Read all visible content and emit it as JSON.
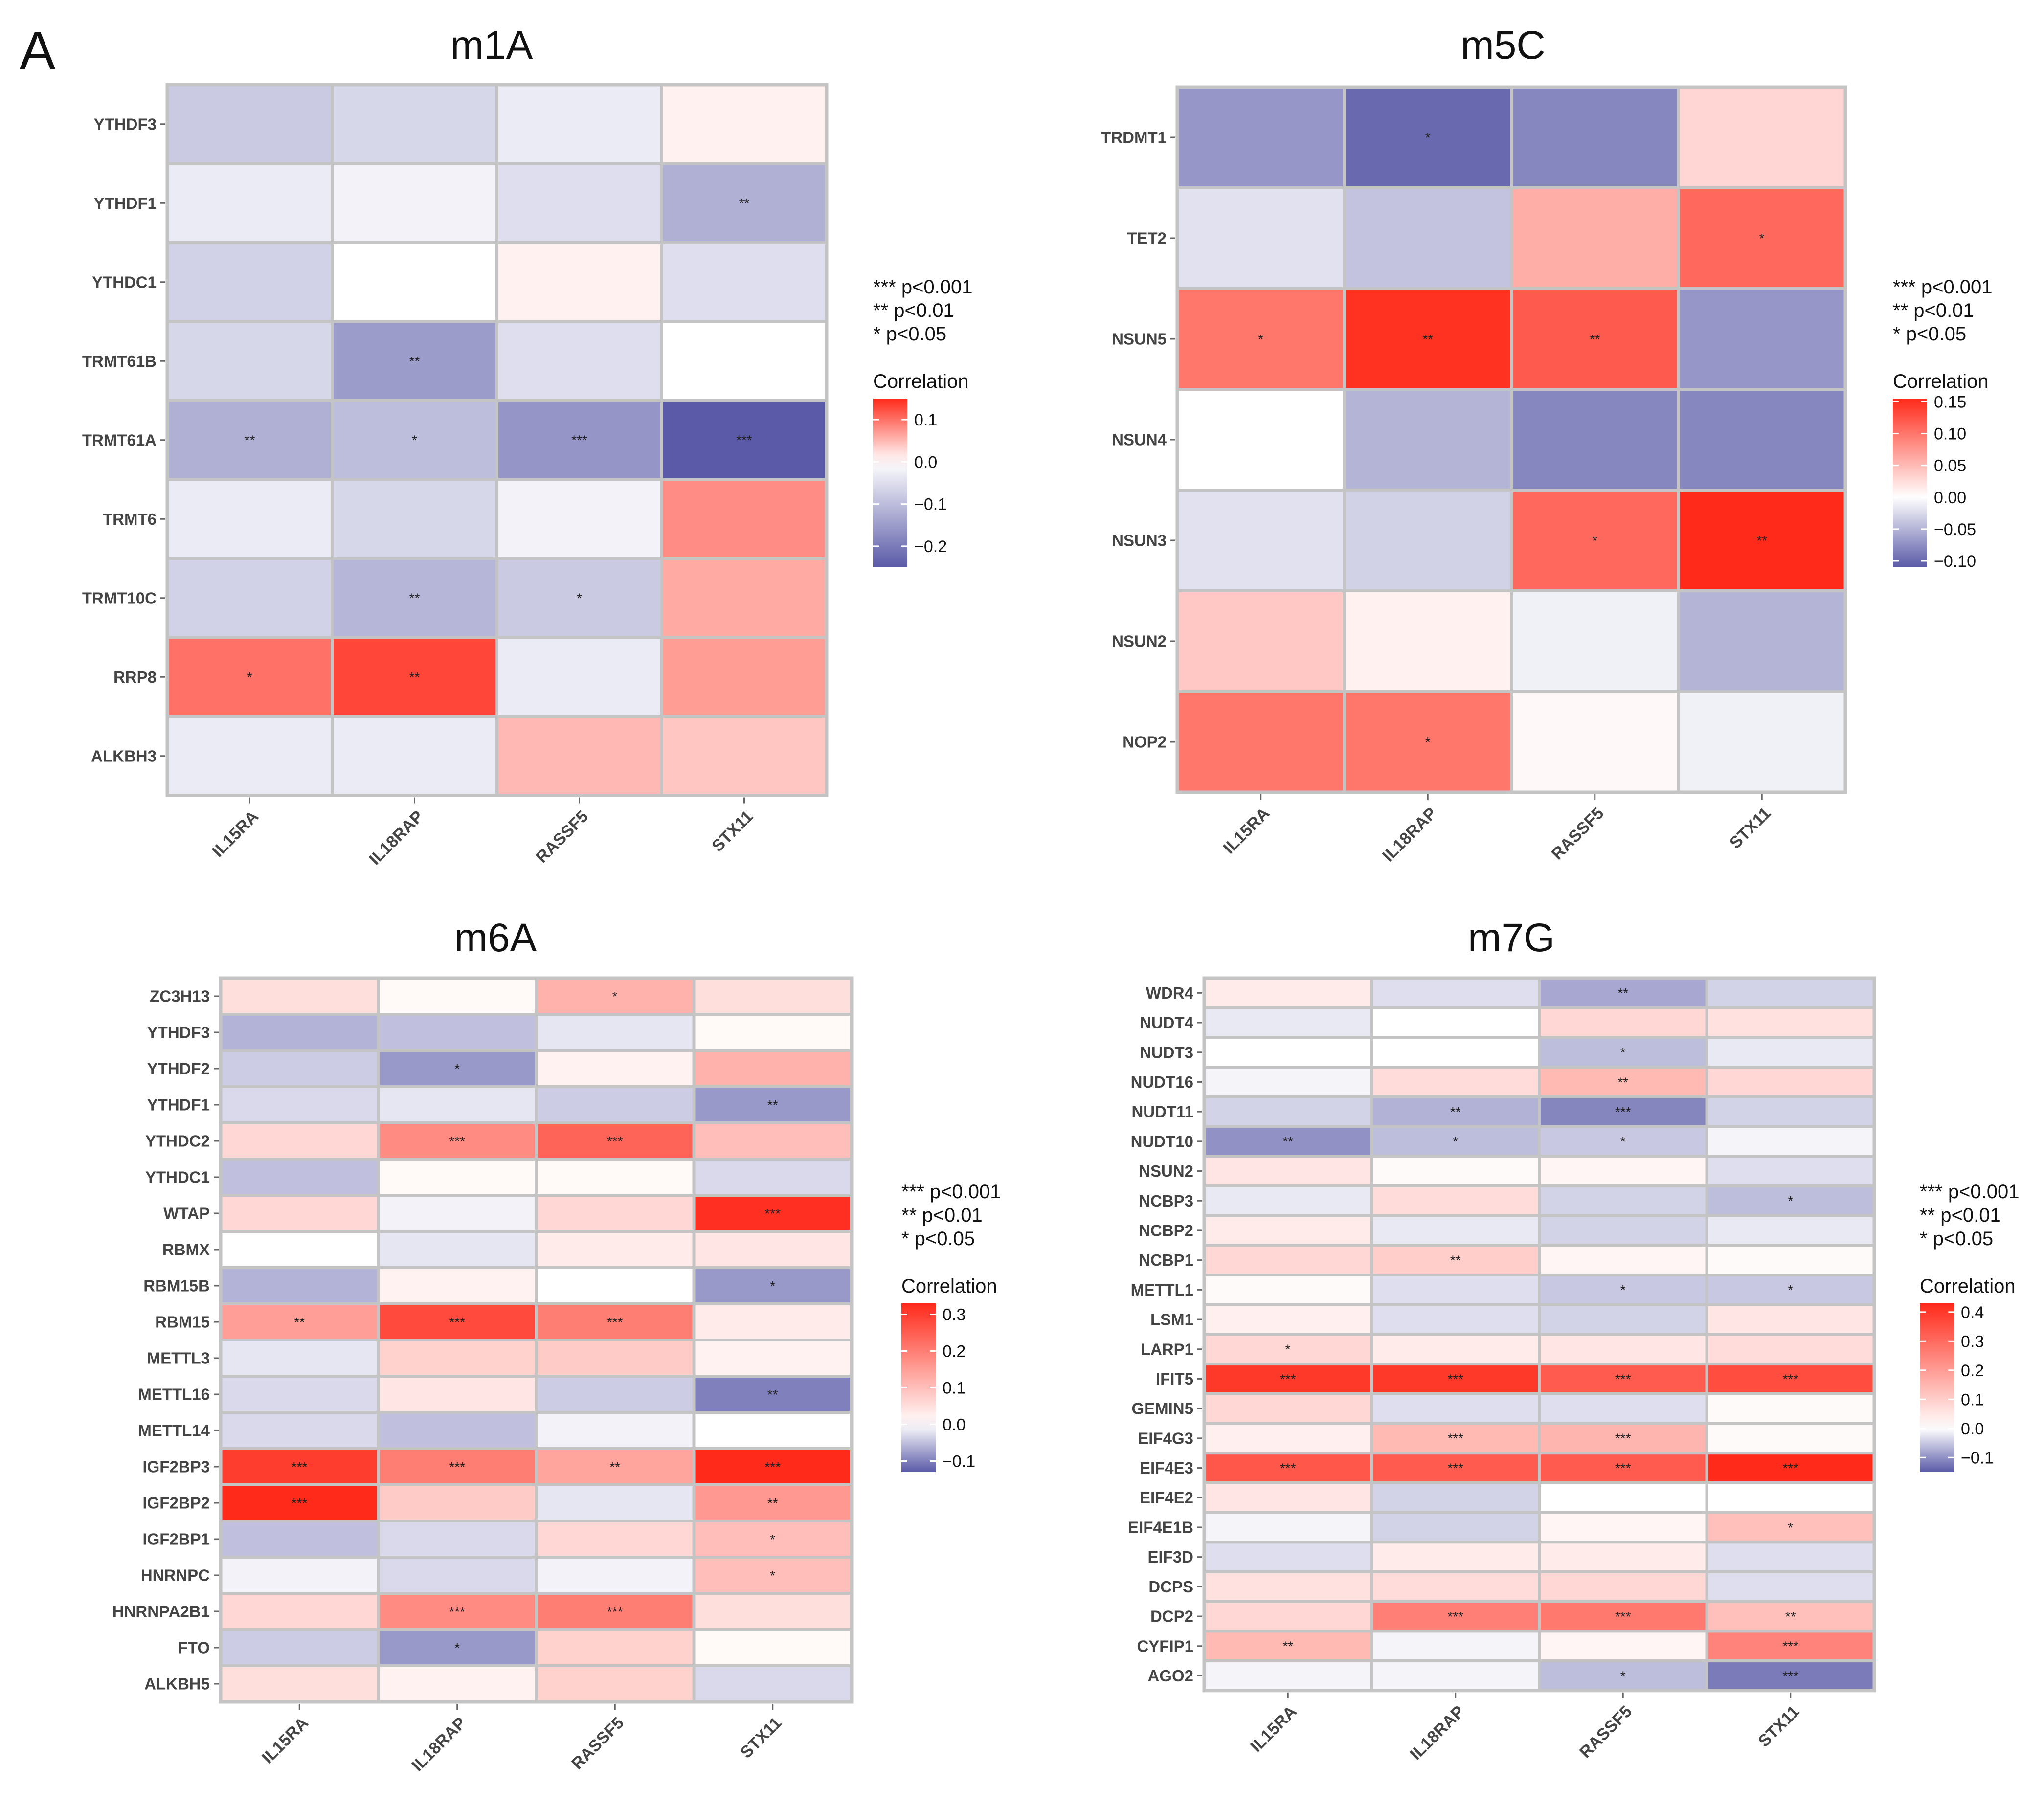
{
  "figure": {
    "panel_letter": "A",
    "significance_legend": [
      "*** p<0.001",
      "** p<0.01",
      "* p<0.05"
    ],
    "correlation_label": "Correlation",
    "colors": {
      "negative": "#5a5aa8",
      "zero": "#ffffff",
      "positive": "#ff2a1a",
      "grid": "#c4c4c4"
    }
  },
  "chart_data": [
    {
      "type": "heatmap",
      "title": "m1A",
      "columns": [
        "IL15RA",
        "IL18RAP",
        "RASSF5",
        "STX11"
      ],
      "rows": [
        "YTHDF3",
        "YTHDF1",
        "YTHDC1",
        "TRMT61B",
        "TRMT61A",
        "TRMT6",
        "TRMT10C",
        "RRP8",
        "ALKBH3"
      ],
      "values": [
        [
          -0.08,
          -0.06,
          -0.03,
          0.01
        ],
        [
          -0.03,
          -0.02,
          -0.05,
          -0.12
        ],
        [
          -0.07,
          0.0,
          0.01,
          -0.05
        ],
        [
          -0.06,
          -0.15,
          -0.05,
          0.0
        ],
        [
          -0.12,
          -0.1,
          -0.16,
          -0.25
        ],
        [
          -0.03,
          -0.06,
          -0.02,
          0.08
        ],
        [
          -0.07,
          -0.11,
          -0.08,
          0.06
        ],
        [
          0.1,
          0.13,
          -0.03,
          0.07
        ],
        [
          -0.03,
          -0.03,
          0.05,
          0.04
        ]
      ],
      "stars": [
        [
          "",
          "",
          "",
          ""
        ],
        [
          "",
          "",
          "",
          "**"
        ],
        [
          "",
          "",
          "",
          ""
        ],
        [
          "",
          "**",
          "",
          ""
        ],
        [
          "**",
          "*",
          "***",
          "***"
        ],
        [
          "",
          "",
          "",
          ""
        ],
        [
          "",
          "**",
          "*",
          ""
        ],
        [
          "*",
          "**",
          "",
          ""
        ],
        [
          "",
          "",
          "",
          ""
        ]
      ],
      "color_range": [
        -0.25,
        0.15
      ],
      "legend_ticks": [
        0.1,
        0.0,
        -0.1,
        -0.2
      ],
      "legend_tick_labels": [
        "0.1",
        "0.0",
        "−0.1",
        "−0.2"
      ]
    },
    {
      "type": "heatmap",
      "title": "m5C",
      "columns": [
        "IL15RA",
        "IL18RAP",
        "RASSF5",
        "STX11"
      ],
      "rows": [
        "TRDMT1",
        "TET2",
        "NSUN5",
        "NSUN4",
        "NSUN3",
        "NSUN2",
        "NOP2"
      ],
      "values": [
        [
          -0.07,
          -0.1,
          -0.08,
          0.03
        ],
        [
          -0.02,
          -0.04,
          0.06,
          0.11
        ],
        [
          0.1,
          0.15,
          0.12,
          -0.07
        ],
        [
          0.0,
          -0.05,
          -0.08,
          -0.08
        ],
        [
          -0.02,
          -0.03,
          0.11,
          0.155
        ],
        [
          0.04,
          0.01,
          -0.01,
          -0.05
        ],
        [
          0.1,
          0.1,
          0.005,
          -0.01
        ]
      ],
      "stars": [
        [
          "",
          "*",
          "",
          ""
        ],
        [
          "",
          "",
          "",
          "*"
        ],
        [
          "*",
          "**",
          "**",
          ""
        ],
        [
          "",
          "",
          "",
          ""
        ],
        [
          "",
          "",
          "*",
          "**"
        ],
        [
          "",
          "",
          "",
          ""
        ],
        [
          "",
          "*",
          "",
          ""
        ]
      ],
      "color_range": [
        -0.11,
        0.155
      ],
      "legend_ticks": [
        0.15,
        0.1,
        0.05,
        0.0,
        -0.05,
        -0.1
      ],
      "legend_tick_labels": [
        "0.15",
        "0.10",
        "0.05",
        "0.00",
        "−0.05",
        "−0.10"
      ]
    },
    {
      "type": "heatmap",
      "title": "m6A",
      "columns": [
        "IL15RA",
        "IL18RAP",
        "RASSF5",
        "STX11"
      ],
      "rows": [
        "ZC3H13",
        "YTHDF3",
        "YTHDF2",
        "YTHDF1",
        "YTHDC2",
        "YTHDC1",
        "WTAP",
        "RBMX",
        "RBM15B",
        "RBM15",
        "METTL3",
        "METTL16",
        "METTL14",
        "IGF2BP3",
        "IGF2BP2",
        "IGF2BP1",
        "HNRNPC",
        "HNRNPA2B1",
        "FTO",
        "ALKBH5"
      ],
      "values": [
        [
          0.05,
          0.01,
          0.12,
          0.05
        ],
        [
          -0.06,
          -0.05,
          -0.02,
          0.01
        ],
        [
          -0.04,
          -0.08,
          0.02,
          0.12
        ],
        [
          -0.03,
          -0.02,
          -0.04,
          -0.08
        ],
        [
          0.06,
          0.18,
          0.24,
          0.1
        ],
        [
          -0.05,
          0.01,
          0.01,
          -0.03
        ],
        [
          0.06,
          -0.01,
          0.06,
          0.32
        ],
        [
          0.0,
          -0.02,
          0.03,
          0.04
        ],
        [
          -0.06,
          0.02,
          0.0,
          -0.08
        ],
        [
          0.15,
          0.28,
          0.2,
          0.03
        ],
        [
          -0.02,
          0.07,
          0.08,
          0.02
        ],
        [
          -0.03,
          0.04,
          -0.04,
          -0.1
        ],
        [
          -0.03,
          -0.05,
          -0.01,
          0.0
        ],
        [
          0.3,
          0.2,
          0.14,
          0.33
        ],
        [
          0.33,
          0.08,
          -0.02,
          0.16
        ],
        [
          -0.05,
          -0.03,
          0.06,
          0.1
        ],
        [
          -0.01,
          -0.03,
          -0.01,
          0.1
        ],
        [
          0.06,
          0.18,
          0.2,
          0.05
        ],
        [
          -0.04,
          -0.08,
          0.07,
          0.01
        ],
        [
          0.05,
          0.02,
          0.07,
          -0.03
        ]
      ],
      "stars": [
        [
          "",
          "",
          "*",
          ""
        ],
        [
          "",
          "",
          "",
          ""
        ],
        [
          "",
          "*",
          "",
          ""
        ],
        [
          "",
          "",
          "",
          "**"
        ],
        [
          "",
          "***",
          "***",
          ""
        ],
        [
          "",
          "",
          "",
          ""
        ],
        [
          "",
          "",
          "",
          "***"
        ],
        [
          "",
          "",
          "",
          ""
        ],
        [
          "",
          "",
          "",
          "*"
        ],
        [
          "**",
          "***",
          "***",
          ""
        ],
        [
          "",
          "",
          "",
          ""
        ],
        [
          "",
          "",
          "",
          "**"
        ],
        [
          "",
          "",
          "",
          ""
        ],
        [
          "***",
          "***",
          "**",
          "***"
        ],
        [
          "***",
          "",
          "",
          "**"
        ],
        [
          "",
          "",
          "",
          "*"
        ],
        [
          "",
          "",
          "",
          "*"
        ],
        [
          "",
          "***",
          "***",
          ""
        ],
        [
          "",
          "*",
          "",
          ""
        ],
        [
          "",
          "",
          "",
          ""
        ]
      ],
      "color_range": [
        -0.13,
        0.33
      ],
      "legend_ticks": [
        0.3,
        0.2,
        0.1,
        0.0,
        -0.1
      ],
      "legend_tick_labels": [
        "0.3",
        "0.2",
        "0.1",
        "0.0",
        "−0.1"
      ]
    },
    {
      "type": "heatmap",
      "title": "m7G",
      "columns": [
        "IL15RA",
        "IL18RAP",
        "RASSF5",
        "STX11"
      ],
      "rows": [
        "WDR4",
        "NUDT4",
        "NUDT3",
        "NUDT16",
        "NUDT11",
        "NUDT10",
        "NSUN2",
        "NCBP3",
        "NCBP2",
        "NCBP1",
        "METTL1",
        "LSM1",
        "LARP1",
        "IFIT5",
        "GEMIN5",
        "EIF4G3",
        "EIF4E3",
        "EIF4E2",
        "EIF4E1B",
        "EIF3D",
        "DCPS",
        "DCP2",
        "CYFIP1",
        "AGO2"
      ],
      "values": [
        [
          0.04,
          -0.03,
          -0.08,
          -0.04
        ],
        [
          -0.02,
          0.0,
          0.08,
          0.06
        ],
        [
          0.0,
          0.0,
          -0.06,
          -0.02
        ],
        [
          -0.01,
          0.07,
          0.14,
          0.08
        ],
        [
          -0.04,
          -0.07,
          -0.11,
          -0.04
        ],
        [
          -0.1,
          -0.06,
          -0.05,
          -0.01
        ],
        [
          0.05,
          0.01,
          0.02,
          -0.03
        ],
        [
          -0.02,
          0.07,
          -0.04,
          -0.06
        ],
        [
          0.04,
          -0.02,
          -0.04,
          -0.02
        ],
        [
          0.08,
          0.1,
          0.02,
          0.01
        ],
        [
          0.01,
          -0.03,
          -0.05,
          -0.05
        ],
        [
          0.03,
          -0.03,
          -0.04,
          0.05
        ],
        [
          0.08,
          0.04,
          0.05,
          0.07
        ],
        [
          0.4,
          0.4,
          0.33,
          0.36
        ],
        [
          0.08,
          -0.03,
          -0.03,
          0.01
        ],
        [
          0.03,
          0.14,
          0.15,
          0.01
        ],
        [
          0.34,
          0.33,
          0.33,
          0.43
        ],
        [
          0.05,
          -0.04,
          0.0,
          0.0
        ],
        [
          -0.01,
          -0.04,
          0.02,
          0.13
        ],
        [
          -0.03,
          0.04,
          0.04,
          -0.03
        ],
        [
          0.06,
          0.07,
          0.08,
          -0.03
        ],
        [
          0.08,
          0.26,
          0.27,
          0.13
        ],
        [
          0.14,
          -0.01,
          0.02,
          0.25
        ],
        [
          -0.01,
          -0.01,
          -0.06,
          -0.12
        ]
      ],
      "stars": [
        [
          "",
          "",
          "**",
          ""
        ],
        [
          "",
          "",
          "",
          ""
        ],
        [
          "",
          "",
          "*",
          ""
        ],
        [
          "",
          "",
          "**",
          ""
        ],
        [
          "",
          "**",
          "***",
          ""
        ],
        [
          "**",
          "*",
          "*",
          ""
        ],
        [
          "",
          "",
          "",
          ""
        ],
        [
          "",
          "",
          "",
          "*"
        ],
        [
          "",
          "",
          "",
          ""
        ],
        [
          "",
          "**",
          "",
          ""
        ],
        [
          "",
          "",
          "*",
          "*"
        ],
        [
          "",
          "",
          "",
          ""
        ],
        [
          "*",
          "",
          "",
          ""
        ],
        [
          "***",
          "***",
          "***",
          "***"
        ],
        [
          "",
          "",
          "",
          ""
        ],
        [
          "",
          "***",
          "***",
          ""
        ],
        [
          "***",
          "***",
          "***",
          "***"
        ],
        [
          "",
          "",
          "",
          ""
        ],
        [
          "",
          "",
          "",
          "*"
        ],
        [
          "",
          "",
          "",
          ""
        ],
        [
          "",
          "",
          "",
          ""
        ],
        [
          "",
          "***",
          "***",
          "**"
        ],
        [
          "**",
          "",
          "",
          "***"
        ],
        [
          "",
          "",
          "*",
          "***"
        ]
      ],
      "color_range": [
        -0.15,
        0.43
      ],
      "legend_ticks": [
        0.4,
        0.3,
        0.2,
        0.1,
        0.0,
        -0.1
      ],
      "legend_tick_labels": [
        "0.4",
        "0.3",
        "0.2",
        "0.1",
        "0.0",
        "−0.1"
      ]
    }
  ]
}
